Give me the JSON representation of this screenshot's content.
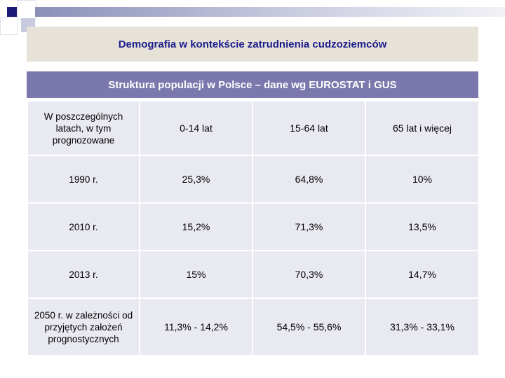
{
  "slide": {
    "title": "Demografia w kontekście zatrudnienia cudzoziemców",
    "table_title": "Struktura populacji w Polsce – dane wg EUROSTAT i GUS"
  },
  "table": {
    "headers": [
      "W poszczególnych latach, w tym prognozowane",
      "0-14 lat",
      "15-64 lat",
      "65 lat i więcej"
    ],
    "rows": [
      [
        "1990 r.",
        "25,3%",
        "64,8%",
        "10%"
      ],
      [
        "2010 r.",
        "15,2%",
        "71,3%",
        "13,5%"
      ],
      [
        "2013 r.",
        "15%",
        "70,3%",
        "14,7%"
      ],
      [
        "2050 r. w zależności od przyjętych założeń prognostycznych",
        "11,3% - 14,2%",
        "54,5% - 55,6%",
        "31,3% - 33,1%"
      ]
    ]
  },
  "colors": {
    "title_text": "#1c1c8c",
    "title_band": "#e7e2d8",
    "header_band": "#7b78ad",
    "cell_bg": "#e9e9f1"
  }
}
